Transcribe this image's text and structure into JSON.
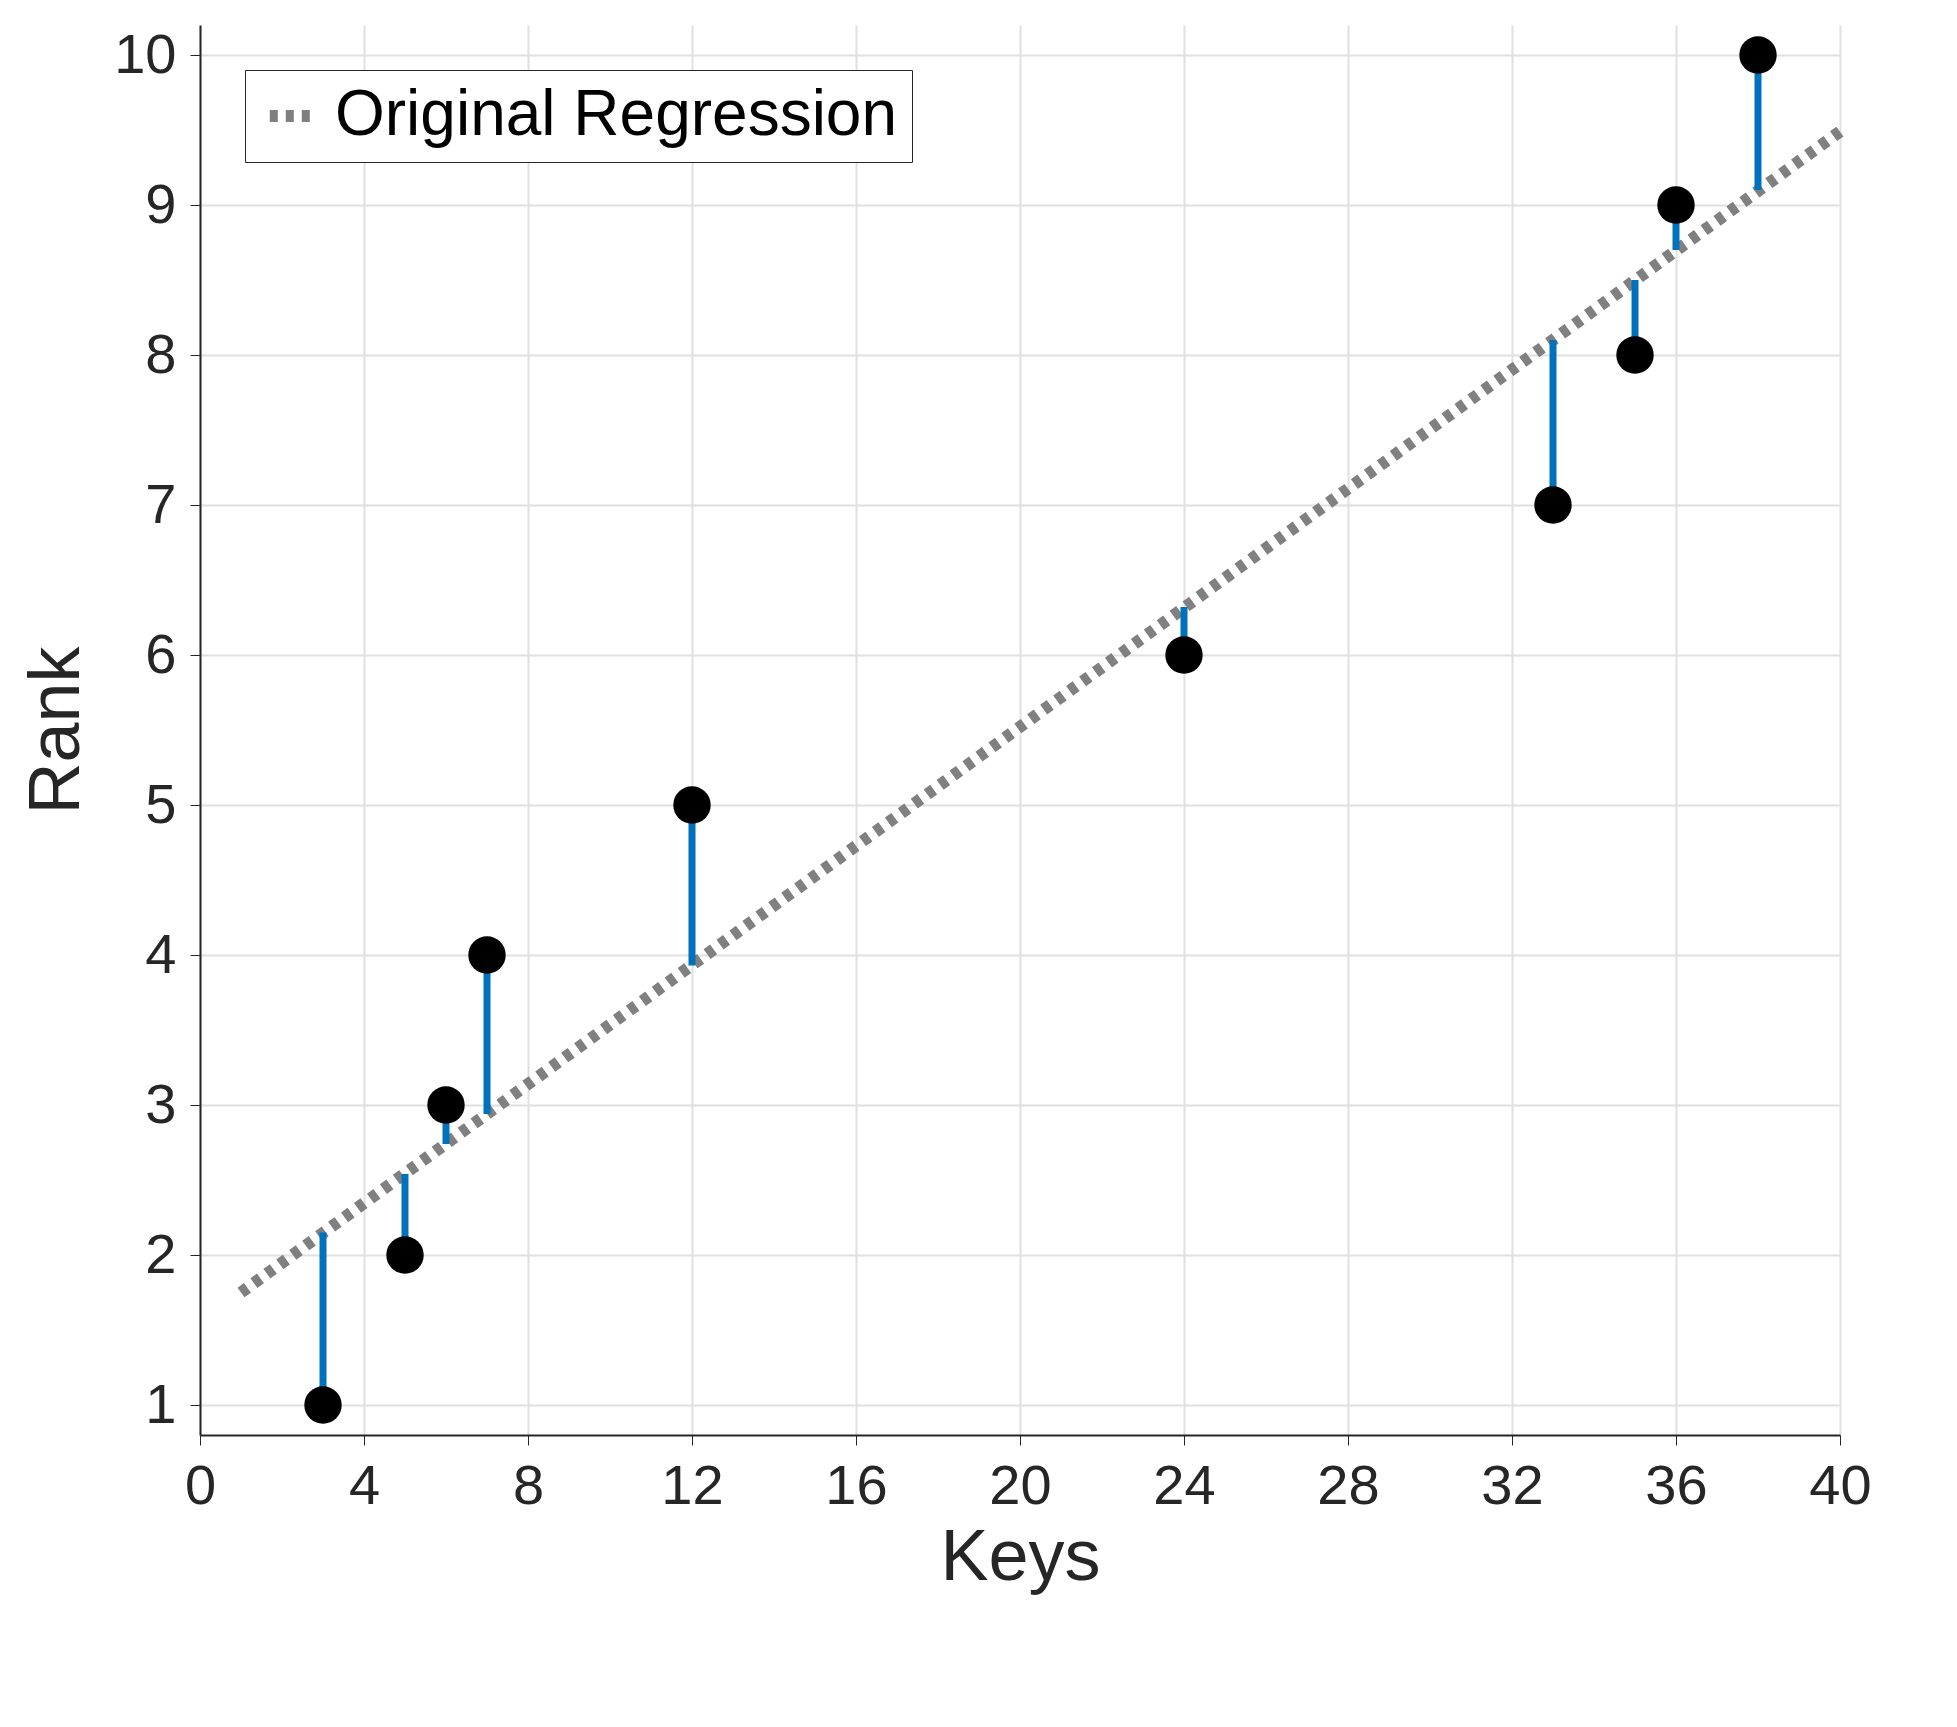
{
  "chart_data": {
    "type": "scatter",
    "xlabel": "Keys",
    "ylabel": "Rank",
    "xlim": [
      0,
      40
    ],
    "xticks": [
      0,
      4,
      8,
      12,
      16,
      20,
      24,
      28,
      32,
      36,
      40
    ],
    "ylim": [
      0.8,
      10.2
    ],
    "yticks": [
      1,
      2,
      3,
      4,
      5,
      6,
      7,
      8,
      9,
      10
    ],
    "grid": true,
    "legend": "top left",
    "series": [
      {
        "type": "scatter",
        "marker": "circle",
        "color": "#000000",
        "x": [
          3,
          5,
          6,
          7,
          12,
          24,
          33,
          35,
          36,
          38
        ],
        "values": [
          1,
          2,
          3,
          4,
          5,
          6,
          7,
          8,
          9,
          10
        ],
        "errors": [
          [
            1,
            2.15
          ],
          [
            2,
            2.54
          ],
          [
            2.74,
            3
          ],
          [
            2.94,
            4
          ],
          [
            3.93,
            5
          ],
          [
            6,
            6.32
          ],
          [
            7,
            8.1
          ],
          [
            8,
            8.5
          ],
          [
            8.7,
            9
          ],
          [
            9.1,
            10
          ]
        ]
      },
      {
        "type": "line",
        "name": "Original Regression",
        "color": "#808080",
        "line_style": "dotted",
        "x": [
          1,
          40
        ],
        "values": [
          1.75,
          9.49
        ]
      }
    ]
  }
}
